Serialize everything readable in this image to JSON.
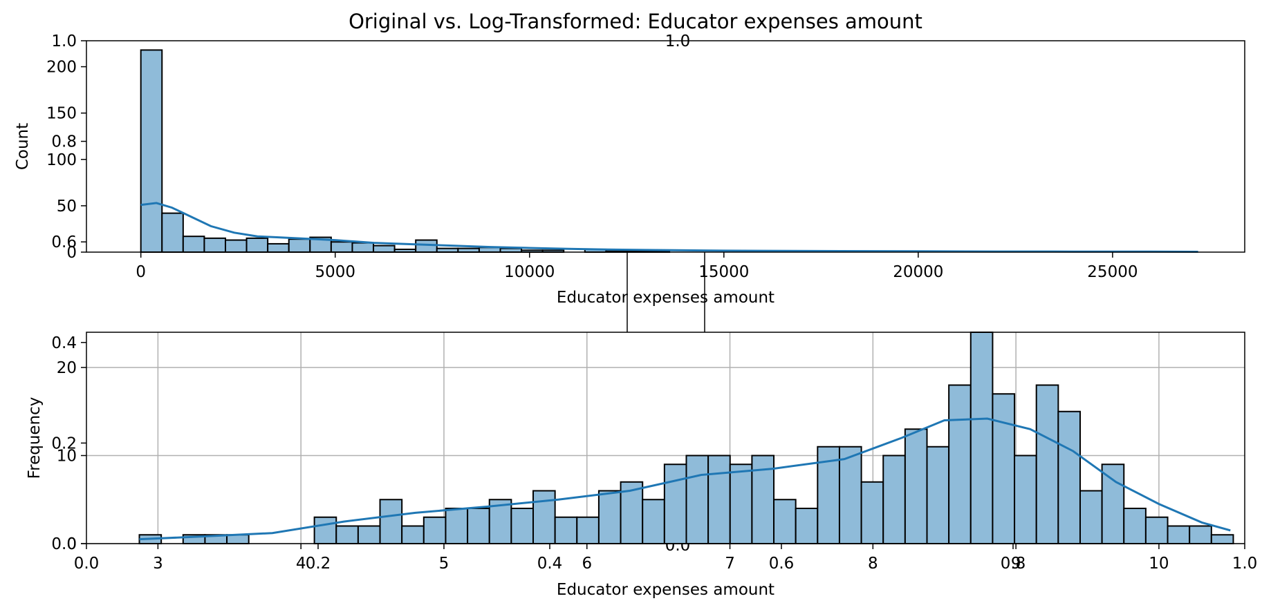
{
  "title": "Original vs. Log-Transformed: Educator expenses amount",
  "colors": {
    "bar_fill": "#8fbbd9",
    "bar_edge": "#000000",
    "kde_line": "#1f77b4",
    "grid": "#b0b0b0"
  },
  "chart_data": [
    {
      "type": "histogram",
      "panel": "top",
      "title": "",
      "xlabel": "Educator expenses amount",
      "ylabel": "Count",
      "xlim": [
        -1400,
        28400
      ],
      "ylim": [
        0,
        228
      ],
      "x_ticks": [
        0,
        5000,
        10000,
        15000,
        20000,
        25000
      ],
      "y_ticks": [
        0,
        50,
        100,
        150,
        200
      ],
      "bin_start": 0,
      "bin_width": 544,
      "counts": [
        218,
        42,
        17,
        15,
        13,
        15,
        9,
        14,
        16,
        11,
        10,
        7,
        3,
        13,
        4,
        4,
        5,
        4,
        2,
        2,
        0,
        3,
        1,
        1,
        1,
        0,
        0,
        0,
        0,
        0,
        0,
        0,
        0,
        0,
        0,
        0,
        0,
        0,
        0,
        0,
        0,
        0,
        0,
        0,
        0,
        0,
        0,
        0,
        0,
        0
      ],
      "kde": {
        "x": [
          0,
          400,
          800,
          1300,
          1800,
          2400,
          3000,
          3500,
          4000,
          5000,
          6000,
          7000,
          8000,
          9000,
          10000,
          11000,
          12000,
          13000,
          14000,
          15000,
          16000,
          18000,
          20000,
          22000,
          24000,
          26000,
          27200
        ],
        "y": [
          51,
          53,
          48,
          38,
          28,
          21,
          17,
          16,
          15,
          13,
          10,
          8.5,
          7,
          5.5,
          4.5,
          3.5,
          2.8,
          2.3,
          1.9,
          1.6,
          1.4,
          1.1,
          0.9,
          0.7,
          0.6,
          0.5,
          0.4
        ]
      }
    },
    {
      "type": "histogram",
      "panel": "bottom",
      "title": "",
      "xlabel": "Educator expenses amount",
      "ylabel": "Frequency",
      "xlim": [
        2.5,
        10.6
      ],
      "ylim": [
        0,
        24
      ],
      "x_ticks": [
        3,
        4,
        5,
        6,
        7,
        8,
        9,
        10
      ],
      "y_ticks": [
        0,
        10,
        20
      ],
      "bin_start": 2.87,
      "bin_width": 0.153,
      "counts": [
        1,
        0,
        1,
        1,
        1,
        0,
        0,
        0,
        3,
        2,
        2,
        5,
        2,
        3,
        4,
        4,
        5,
        4,
        6,
        3,
        3,
        6,
        7,
        5,
        9,
        10,
        10,
        9,
        10,
        5,
        4,
        11,
        11,
        7,
        10,
        13,
        11,
        18,
        24,
        17,
        10,
        18,
        15,
        6,
        9,
        4,
        3,
        2,
        2,
        1
      ],
      "kde": {
        "x": [
          2.87,
          3.3,
          3.8,
          4.3,
          4.8,
          5.3,
          5.8,
          6.3,
          6.8,
          7.3,
          7.8,
          8.2,
          8.5,
          8.8,
          9.1,
          9.4,
          9.7,
          10.0,
          10.3,
          10.5
        ],
        "y": [
          0.5,
          0.8,
          1.2,
          2.5,
          3.5,
          4.2,
          5.0,
          6.0,
          7.8,
          8.5,
          9.6,
          12,
          14,
          14.2,
          13,
          10.5,
          7,
          4.5,
          2.4,
          1.5
        ]
      }
    }
  ],
  "ghost_axes": {
    "y_ticks": [
      "0.0",
      "0.2",
      "0.4",
      "0.6",
      "0.8",
      "1.0"
    ],
    "x_ticks": [
      "0.0",
      "0.2",
      "0.4",
      "0.6",
      "0.8",
      "1.0"
    ],
    "center_label": "0.0",
    "top_label": "1.0"
  }
}
